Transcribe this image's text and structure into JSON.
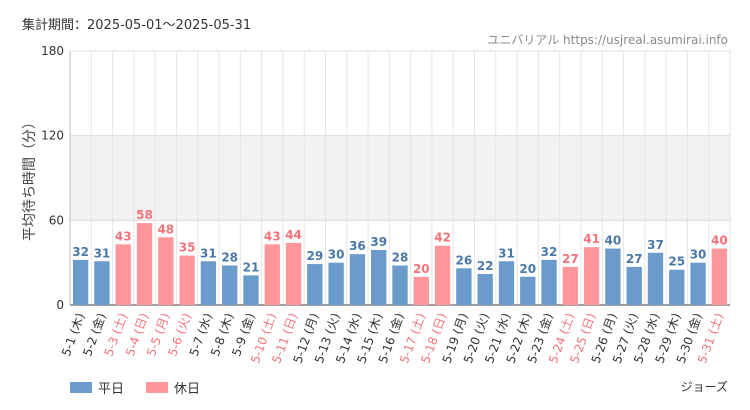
{
  "period_label": "集計期間：2025-05-01〜2025-05-31",
  "source_label": "ユニバリアル https://usjreal.asumirai.info",
  "attraction_label": "ジョーズ",
  "legend": [
    {
      "name": "平日",
      "color": "#6a9bcb"
    },
    {
      "name": "休日",
      "color": "#ff969c"
    }
  ],
  "chart_data": {
    "type": "bar",
    "ylabel": "平均待ち時間（分）",
    "ylim": [
      0,
      180
    ],
    "yticks": [
      0,
      60,
      120,
      180
    ],
    "shaded_band": [
      60,
      120
    ],
    "categories": [
      "5-1 (木)",
      "5-2 (金)",
      "5-3 (土)",
      "5-4 (日)",
      "5-5 (月)",
      "5-6 (火)",
      "5-7 (水)",
      "5-8 (木)",
      "5-9 (金)",
      "5-10 (土)",
      "5-11 (日)",
      "5-12 (月)",
      "5-13 (火)",
      "5-14 (水)",
      "5-15 (木)",
      "5-16 (金)",
      "5-17 (土)",
      "5-18 (日)",
      "5-19 (月)",
      "5-20 (火)",
      "5-21 (水)",
      "5-22 (木)",
      "5-23 (金)",
      "5-24 (土)",
      "5-25 (日)",
      "5-26 (月)",
      "5-27 (火)",
      "5-28 (水)",
      "5-29 (木)",
      "5-30 (金)",
      "5-31 (土)"
    ],
    "values": [
      32,
      31,
      43,
      58,
      48,
      35,
      31,
      28,
      21,
      43,
      44,
      29,
      30,
      36,
      39,
      28,
      20,
      42,
      26,
      22,
      31,
      20,
      32,
      27,
      41,
      40,
      27,
      37,
      25,
      30,
      40
    ],
    "holiday": [
      false,
      false,
      true,
      true,
      true,
      true,
      false,
      false,
      false,
      true,
      true,
      false,
      false,
      false,
      false,
      false,
      true,
      true,
      false,
      false,
      false,
      false,
      false,
      true,
      true,
      false,
      false,
      false,
      false,
      false,
      true
    ],
    "colors": {
      "weekday": "#6a9bcb",
      "holiday": "#ff969c",
      "weekday_label": "#4a78a8",
      "holiday_label": "#f2737b",
      "band": "#f2f2f2",
      "grid": "#e6e6e6"
    }
  }
}
